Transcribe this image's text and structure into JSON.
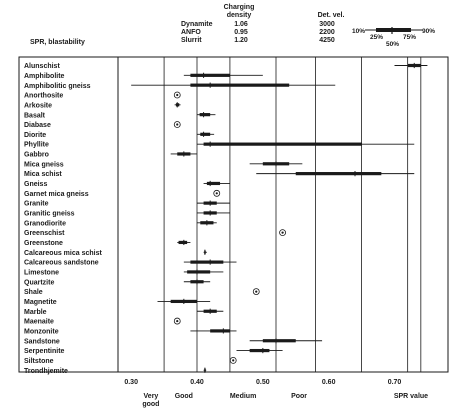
{
  "header": {
    "spr_label": "SPR, blastability",
    "charging_density_title": "Charging\ndensity",
    "det_vel_title": "Det. vel.",
    "explosives": [
      {
        "name": "Dynamite",
        "density": "1.06",
        "det_vel": "3000"
      },
      {
        "name": "ANFO",
        "density": "0.95",
        "det_vel": "2200"
      },
      {
        "name": "Slurrit",
        "density": "1.20",
        "det_vel": "4250"
      }
    ],
    "percentile_legend": {
      "p10": "10%",
      "p25": "25%",
      "p50": "50%",
      "p75": "75%",
      "p90": "90%"
    }
  },
  "chart_data": {
    "type": "box",
    "xlabel": "SPR value",
    "xlim": [
      0.28,
      0.76
    ],
    "ticks": [
      {
        "value": 0.3,
        "label": "0.30"
      },
      {
        "value": 0.4,
        "label": "0.40"
      },
      {
        "value": 0.5,
        "label": "0.50"
      },
      {
        "value": 0.6,
        "label": "0.60"
      },
      {
        "value": 0.7,
        "label": "0.70"
      }
    ],
    "class_boundaries": [
      0.35,
      0.4,
      0.45,
      0.52,
      0.58,
      0.65,
      0.72,
      0.74
    ],
    "class_labels": [
      {
        "value": 0.33,
        "text": "Very\ngood"
      },
      {
        "value": 0.38,
        "text": "Good"
      },
      {
        "value": 0.47,
        "text": "Medium"
      },
      {
        "value": 0.555,
        "text": "Poor"
      },
      {
        "value": 0.725,
        "text": "SPR value"
      }
    ],
    "rocks": [
      {
        "name": "Alunschist",
        "p10": 0.7,
        "p25": 0.72,
        "p50": 0.73,
        "p75": 0.74,
        "p90": 0.75
      },
      {
        "name": "Amphibolite",
        "p10": 0.38,
        "p25": 0.39,
        "p50": 0.41,
        "p75": 0.45,
        "p90": 0.5
      },
      {
        "name": "Amphibolitic gneiss",
        "p10": 0.3,
        "p25": 0.39,
        "p50": 0.42,
        "p75": 0.54,
        "p90": 0.61
      },
      {
        "name": "Anorthosite",
        "single": 0.37
      },
      {
        "name": "Arkosite",
        "p10": 0.366,
        "p25": 0.368,
        "p50": 0.37,
        "p75": 0.373,
        "p90": 0.375
      },
      {
        "name": "Basalt",
        "p10": 0.4,
        "p25": 0.404,
        "p50": 0.41,
        "p75": 0.42,
        "p90": 0.428
      },
      {
        "name": "Diabase",
        "single": 0.37
      },
      {
        "name": "Diorite",
        "p10": 0.4,
        "p25": 0.405,
        "p50": 0.41,
        "p75": 0.42,
        "p90": 0.426
      },
      {
        "name": "Phyllite",
        "p10": 0.4,
        "p25": 0.41,
        "p50": 0.42,
        "p75": 0.65,
        "p90": 0.73
      },
      {
        "name": "Gabbro",
        "p10": 0.36,
        "p25": 0.37,
        "p50": 0.38,
        "p75": 0.39,
        "p90": 0.4
      },
      {
        "name": "Mica gneiss",
        "p10": 0.48,
        "p25": 0.5,
        "p50": 0.52,
        "p75": 0.54,
        "p90": 0.56
      },
      {
        "name": "Mica schist",
        "p10": 0.49,
        "p25": 0.55,
        "p50": 0.64,
        "p75": 0.68,
        "p90": 0.73
      },
      {
        "name": "Gneiss",
        "p10": 0.41,
        "p25": 0.415,
        "p50": 0.42,
        "p75": 0.435,
        "p90": 0.45
      },
      {
        "name": "Garnet mica gneiss",
        "single": 0.43
      },
      {
        "name": "Granite",
        "p10": 0.4,
        "p25": 0.41,
        "p50": 0.42,
        "p75": 0.43,
        "p90": 0.45
      },
      {
        "name": "Granitic gneiss",
        "p10": 0.4,
        "p25": 0.41,
        "p50": 0.42,
        "p75": 0.43,
        "p90": 0.45
      },
      {
        "name": "Granodiorite",
        "p10": 0.4,
        "p25": 0.405,
        "p50": 0.415,
        "p75": 0.425,
        "p90": 0.43
      },
      {
        "name": "Greenschist",
        "single": 0.53
      },
      {
        "name": "Greenstone",
        "p10": 0.37,
        "p25": 0.372,
        "p50": 0.38,
        "p75": 0.385,
        "p90": 0.39
      },
      {
        "name": "Calcareous mica schist",
        "p10": 0.41,
        "p25": 0.411,
        "p50": 0.412,
        "p75": 0.413,
        "p90": 0.415
      },
      {
        "name": "Calcareous sandstone",
        "p10": 0.38,
        "p25": 0.39,
        "p50": 0.42,
        "p75": 0.44,
        "p90": 0.46
      },
      {
        "name": "Limestone",
        "p10": 0.38,
        "p25": 0.385,
        "p50": 0.4,
        "p75": 0.42,
        "p90": 0.44
      },
      {
        "name": "Quartzite",
        "p10": 0.38,
        "p25": 0.39,
        "p50": 0.4,
        "p75": 0.41,
        "p90": 0.42
      },
      {
        "name": "Shale",
        "single": 0.49
      },
      {
        "name": "Magnetite",
        "p10": 0.34,
        "p25": 0.36,
        "p50": 0.38,
        "p75": 0.4,
        "p90": 0.42
      },
      {
        "name": "Marble",
        "p10": 0.4,
        "p25": 0.41,
        "p50": 0.42,
        "p75": 0.43,
        "p90": 0.44
      },
      {
        "name": "Maenaite",
        "single": 0.37
      },
      {
        "name": "Monzonite",
        "p10": 0.39,
        "p25": 0.42,
        "p50": 0.44,
        "p75": 0.45,
        "p90": 0.46
      },
      {
        "name": "Sandstone",
        "p10": 0.48,
        "p25": 0.5,
        "p50": 0.52,
        "p75": 0.55,
        "p90": 0.59
      },
      {
        "name": "Serpentinite",
        "p10": 0.46,
        "p25": 0.48,
        "p50": 0.5,
        "p75": 0.51,
        "p90": 0.53
      },
      {
        "name": "Siltstone",
        "single": 0.455
      },
      {
        "name": "Trondhjemite",
        "p10": 0.41,
        "p25": 0.411,
        "p50": 0.412,
        "p75": 0.413,
        "p90": 0.414
      }
    ]
  }
}
